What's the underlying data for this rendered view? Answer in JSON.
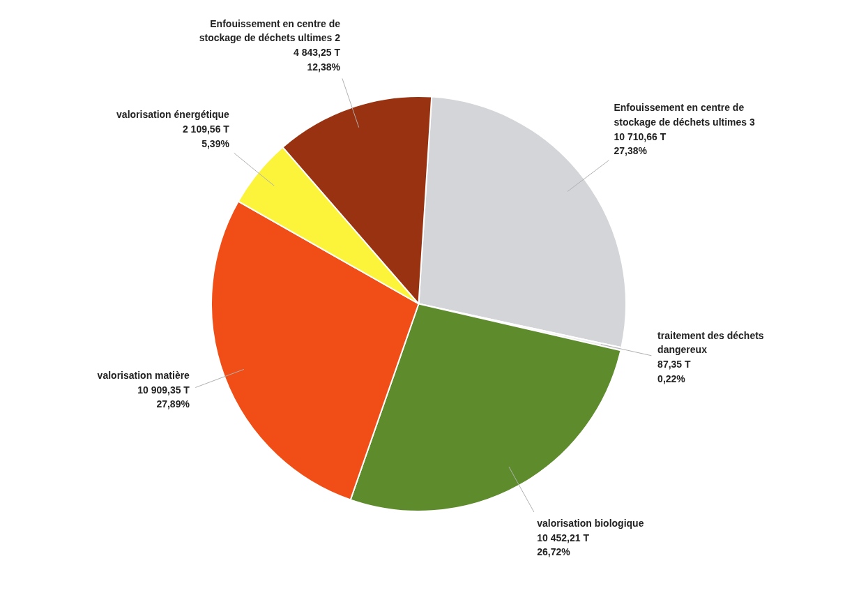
{
  "chart_data": {
    "type": "pie",
    "categories": [
      "Enfouissement en centre de stockage de déchets ultimes 3",
      "traitement des déchets dangereux",
      "valorisation biologique",
      "valorisation matière",
      "valorisation énergétique",
      "Enfouissement en centre de stockage de déchets ultimes 2"
    ],
    "values": [
      10710.66,
      87.35,
      10452.21,
      10909.35,
      2109.56,
      4843.25
    ],
    "value_labels": [
      "10 710,66 T\n27,38%",
      "87,35 T\n0,22%",
      "10 452,21 T\n26,72%",
      "10 909,35 T\n27,89%",
      "2 109,56 T\n5,39%",
      "4 843,25 T\n12,38%"
    ],
    "colors": [
      "#d3d5d8",
      "#ececec",
      "#5e8c2c",
      "#f04e16",
      "#fbf43a",
      "#983210"
    ]
  }
}
